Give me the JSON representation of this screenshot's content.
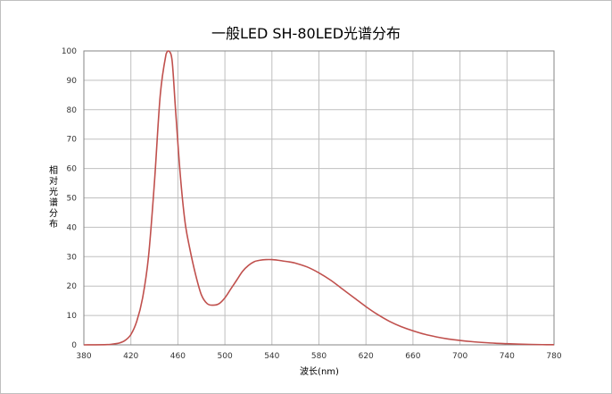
{
  "chart_data": {
    "type": "line",
    "title": "一般LED SH-80LED光谱分布",
    "xlabel": "波长(nm)",
    "ylabel": "相对光谱分布",
    "xlim": [
      380,
      780
    ],
    "ylim": [
      0,
      100
    ],
    "xticks": [
      380,
      420,
      460,
      500,
      540,
      580,
      620,
      660,
      700,
      740,
      780
    ],
    "yticks": [
      0,
      10,
      20,
      30,
      40,
      50,
      60,
      70,
      80,
      90,
      100
    ],
    "grid": true,
    "line_color": "#c0504d",
    "series": [
      {
        "x": [
          380,
          400,
          405,
          410,
          415,
          420,
          425,
          430,
          435,
          440,
          445,
          450,
          452,
          455,
          458,
          462,
          466,
          470,
          475,
          480,
          485,
          490,
          495,
          500,
          505,
          510,
          515,
          520,
          525,
          530,
          535,
          540,
          545,
          550,
          555,
          560,
          570,
          580,
          590,
          600,
          610,
          620,
          630,
          640,
          650,
          660,
          670,
          680,
          690,
          700,
          710,
          720,
          730,
          740,
          750,
          760,
          770,
          780
        ],
        "y": [
          0,
          0.1,
          0.3,
          0.6,
          1.5,
          3.5,
          8,
          16,
          30,
          55,
          85,
          99,
          100,
          97,
          80,
          58,
          42,
          33,
          24,
          17,
          14,
          13.5,
          14,
          16,
          19,
          22,
          25,
          27,
          28.3,
          28.8,
          29,
          29,
          28.8,
          28.5,
          28.2,
          27.8,
          26.5,
          24.5,
          22,
          19,
          16,
          13,
          10.3,
          8,
          6.2,
          4.8,
          3.6,
          2.7,
          2,
          1.5,
          1.1,
          0.8,
          0.55,
          0.4,
          0.25,
          0.15,
          0.08,
          0.05
        ]
      }
    ]
  }
}
